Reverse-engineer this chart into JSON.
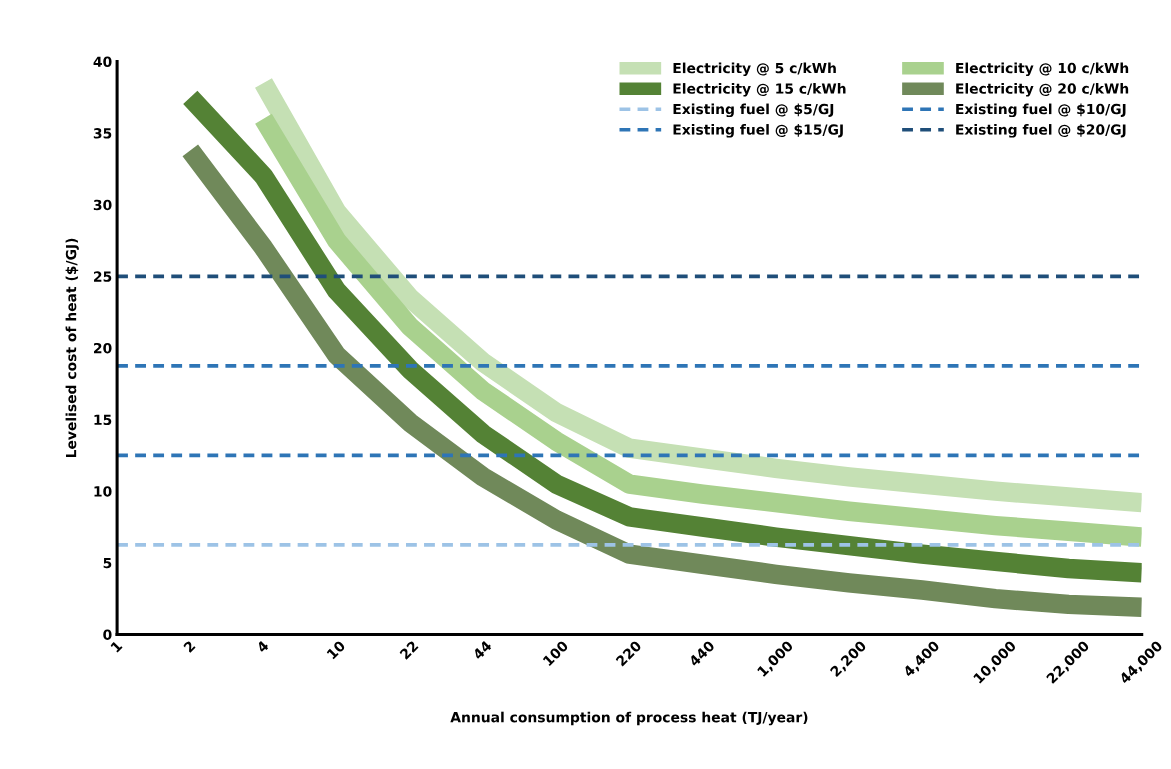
{
  "chart_data": {
    "type": "line",
    "xlabel": "Annual consumption of process heat (TJ/year)",
    "ylabel": "Levelised cost of heat ($/GJ)",
    "categories": [
      "1",
      "2",
      "4",
      "10",
      "22",
      "44",
      "100",
      "220",
      "440",
      "1,000",
      "2,200",
      "4,400",
      "10,000",
      "22,000",
      "44,000"
    ],
    "ylim": [
      0,
      40
    ],
    "yticks": [
      0,
      5,
      10,
      15,
      20,
      25,
      30,
      35,
      40
    ],
    "grid": false,
    "legend": "top right",
    "marker": "none",
    "series": [
      {
        "name": "Electricity @ 5 c/kWh",
        "color": "#c5e0b4",
        "line_style": "solid",
        "values": [
          null,
          null,
          38.5,
          29.5,
          23.5,
          19,
          15.5,
          13,
          12.3,
          11.6,
          11,
          10.5,
          10,
          9.6,
          9.2
        ]
      },
      {
        "name": "Electricity @ 10 c/kWh",
        "color": "#a9d18e",
        "line_style": "solid",
        "values": [
          null,
          null,
          36,
          27.5,
          21.5,
          17,
          13.5,
          10.5,
          9.8,
          9.2,
          8.6,
          8.1,
          7.6,
          7.2,
          6.8
        ]
      },
      {
        "name": "Electricity @ 15 c/kWh",
        "color": "#548235",
        "line_style": "solid",
        "values": [
          null,
          37.5,
          32,
          24,
          18.5,
          14,
          10.5,
          8.2,
          7.5,
          6.8,
          6.2,
          5.6,
          5.1,
          4.6,
          4.3
        ]
      },
      {
        "name": "Electricity @ 20 c/kWh",
        "color": "#70895a",
        "line_style": "solid",
        "values": [
          null,
          33.8,
          27,
          19.5,
          14.8,
          11,
          8,
          5.6,
          4.9,
          4.2,
          3.6,
          3.1,
          2.5,
          2.1,
          1.9
        ]
      },
      {
        "name": "Existing fuel @ $5/GJ",
        "color": "#9dc3e6",
        "line_style": "dashed",
        "values": [
          6.25,
          6.25,
          6.25,
          6.25,
          6.25,
          6.25,
          6.25,
          6.25,
          6.25,
          6.25,
          6.25,
          6.25,
          6.25,
          6.25,
          6.25
        ]
      },
      {
        "name": "Existing fuel @ $10/GJ",
        "color": "#2e75b6",
        "line_style": "dashed",
        "values": [
          12.5,
          12.5,
          12.5,
          12.5,
          12.5,
          12.5,
          12.5,
          12.5,
          12.5,
          12.5,
          12.5,
          12.5,
          12.5,
          12.5,
          12.5
        ]
      },
      {
        "name": "Existing fuel @ $15/GJ",
        "color": "#2e75b6",
        "line_style": "dashed",
        "values": [
          18.75,
          18.75,
          18.75,
          18.75,
          18.75,
          18.75,
          18.75,
          18.75,
          18.75,
          18.75,
          18.75,
          18.75,
          18.75,
          18.75,
          18.75
        ]
      },
      {
        "name": "Existing fuel @ $20/GJ",
        "color": "#1f4e79",
        "line_style": "dashed",
        "values": [
          25,
          25,
          25,
          25,
          25,
          25,
          25,
          25,
          25,
          25,
          25,
          25,
          25,
          25,
          25
        ]
      }
    ]
  }
}
